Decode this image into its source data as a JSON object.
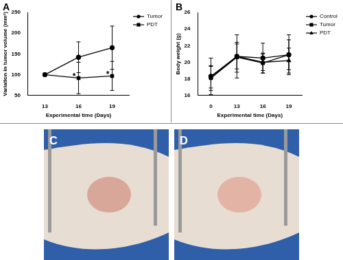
{
  "chart_data": [
    {
      "type": "line",
      "title": "A",
      "x_label": "Experimental time (Days)",
      "y_label": "Variation in tumor volume (mm³)",
      "categories": [
        13,
        16,
        19
      ],
      "series": [
        {
          "name": "Tumor",
          "color": "#000000",
          "marker": "circle",
          "values": [
            100,
            142,
            165
          ],
          "errors": [
            0,
            37,
            52
          ]
        },
        {
          "name": "PDT",
          "color": "#000000",
          "marker": "square",
          "values": [
            100,
            92,
            97
          ],
          "errors": [
            0,
            38,
            35
          ]
        }
      ],
      "ylim": [
        50,
        250
      ],
      "yticks": [
        50,
        100,
        150,
        200,
        250
      ],
      "grid": false,
      "legend": "right",
      "annotations": [
        {
          "text": "*",
          "x": 16,
          "y": 92
        },
        {
          "text": "*",
          "x": 19,
          "y": 97
        }
      ]
    },
    {
      "type": "line",
      "title": "B",
      "x_label": "Experimental time (Days)",
      "y_label": "Body weight (g)",
      "categories": [
        0,
        13,
        16,
        19
      ],
      "series": [
        {
          "name": "Control",
          "color": "#000000",
          "marker": "circle",
          "values": [
            18.3,
            20.7,
            20.5,
            20.9
          ],
          "errors": [
            2.2,
            2.6,
            1.8,
            2.4
          ]
        },
        {
          "name": "Tumor",
          "color": "#000000",
          "marker": "square",
          "values": [
            18.1,
            20.6,
            19.9,
            20.9
          ],
          "errors": [
            1.5,
            1.8,
            1.2,
            1.8
          ]
        },
        {
          "name": "PDT",
          "color": "#000000",
          "marker": "triangle",
          "values": [
            18.2,
            20.7,
            20.0,
            20.2
          ],
          "errors": [
            1.3,
            1.5,
            1.0,
            1.5
          ]
        }
      ],
      "ylim": [
        16,
        26
      ],
      "yticks": [
        16,
        18,
        20,
        22,
        24,
        26
      ],
      "grid": false,
      "legend": "right"
    }
  ],
  "photos": [
    {
      "label": "C"
    },
    {
      "label": "D"
    }
  ]
}
